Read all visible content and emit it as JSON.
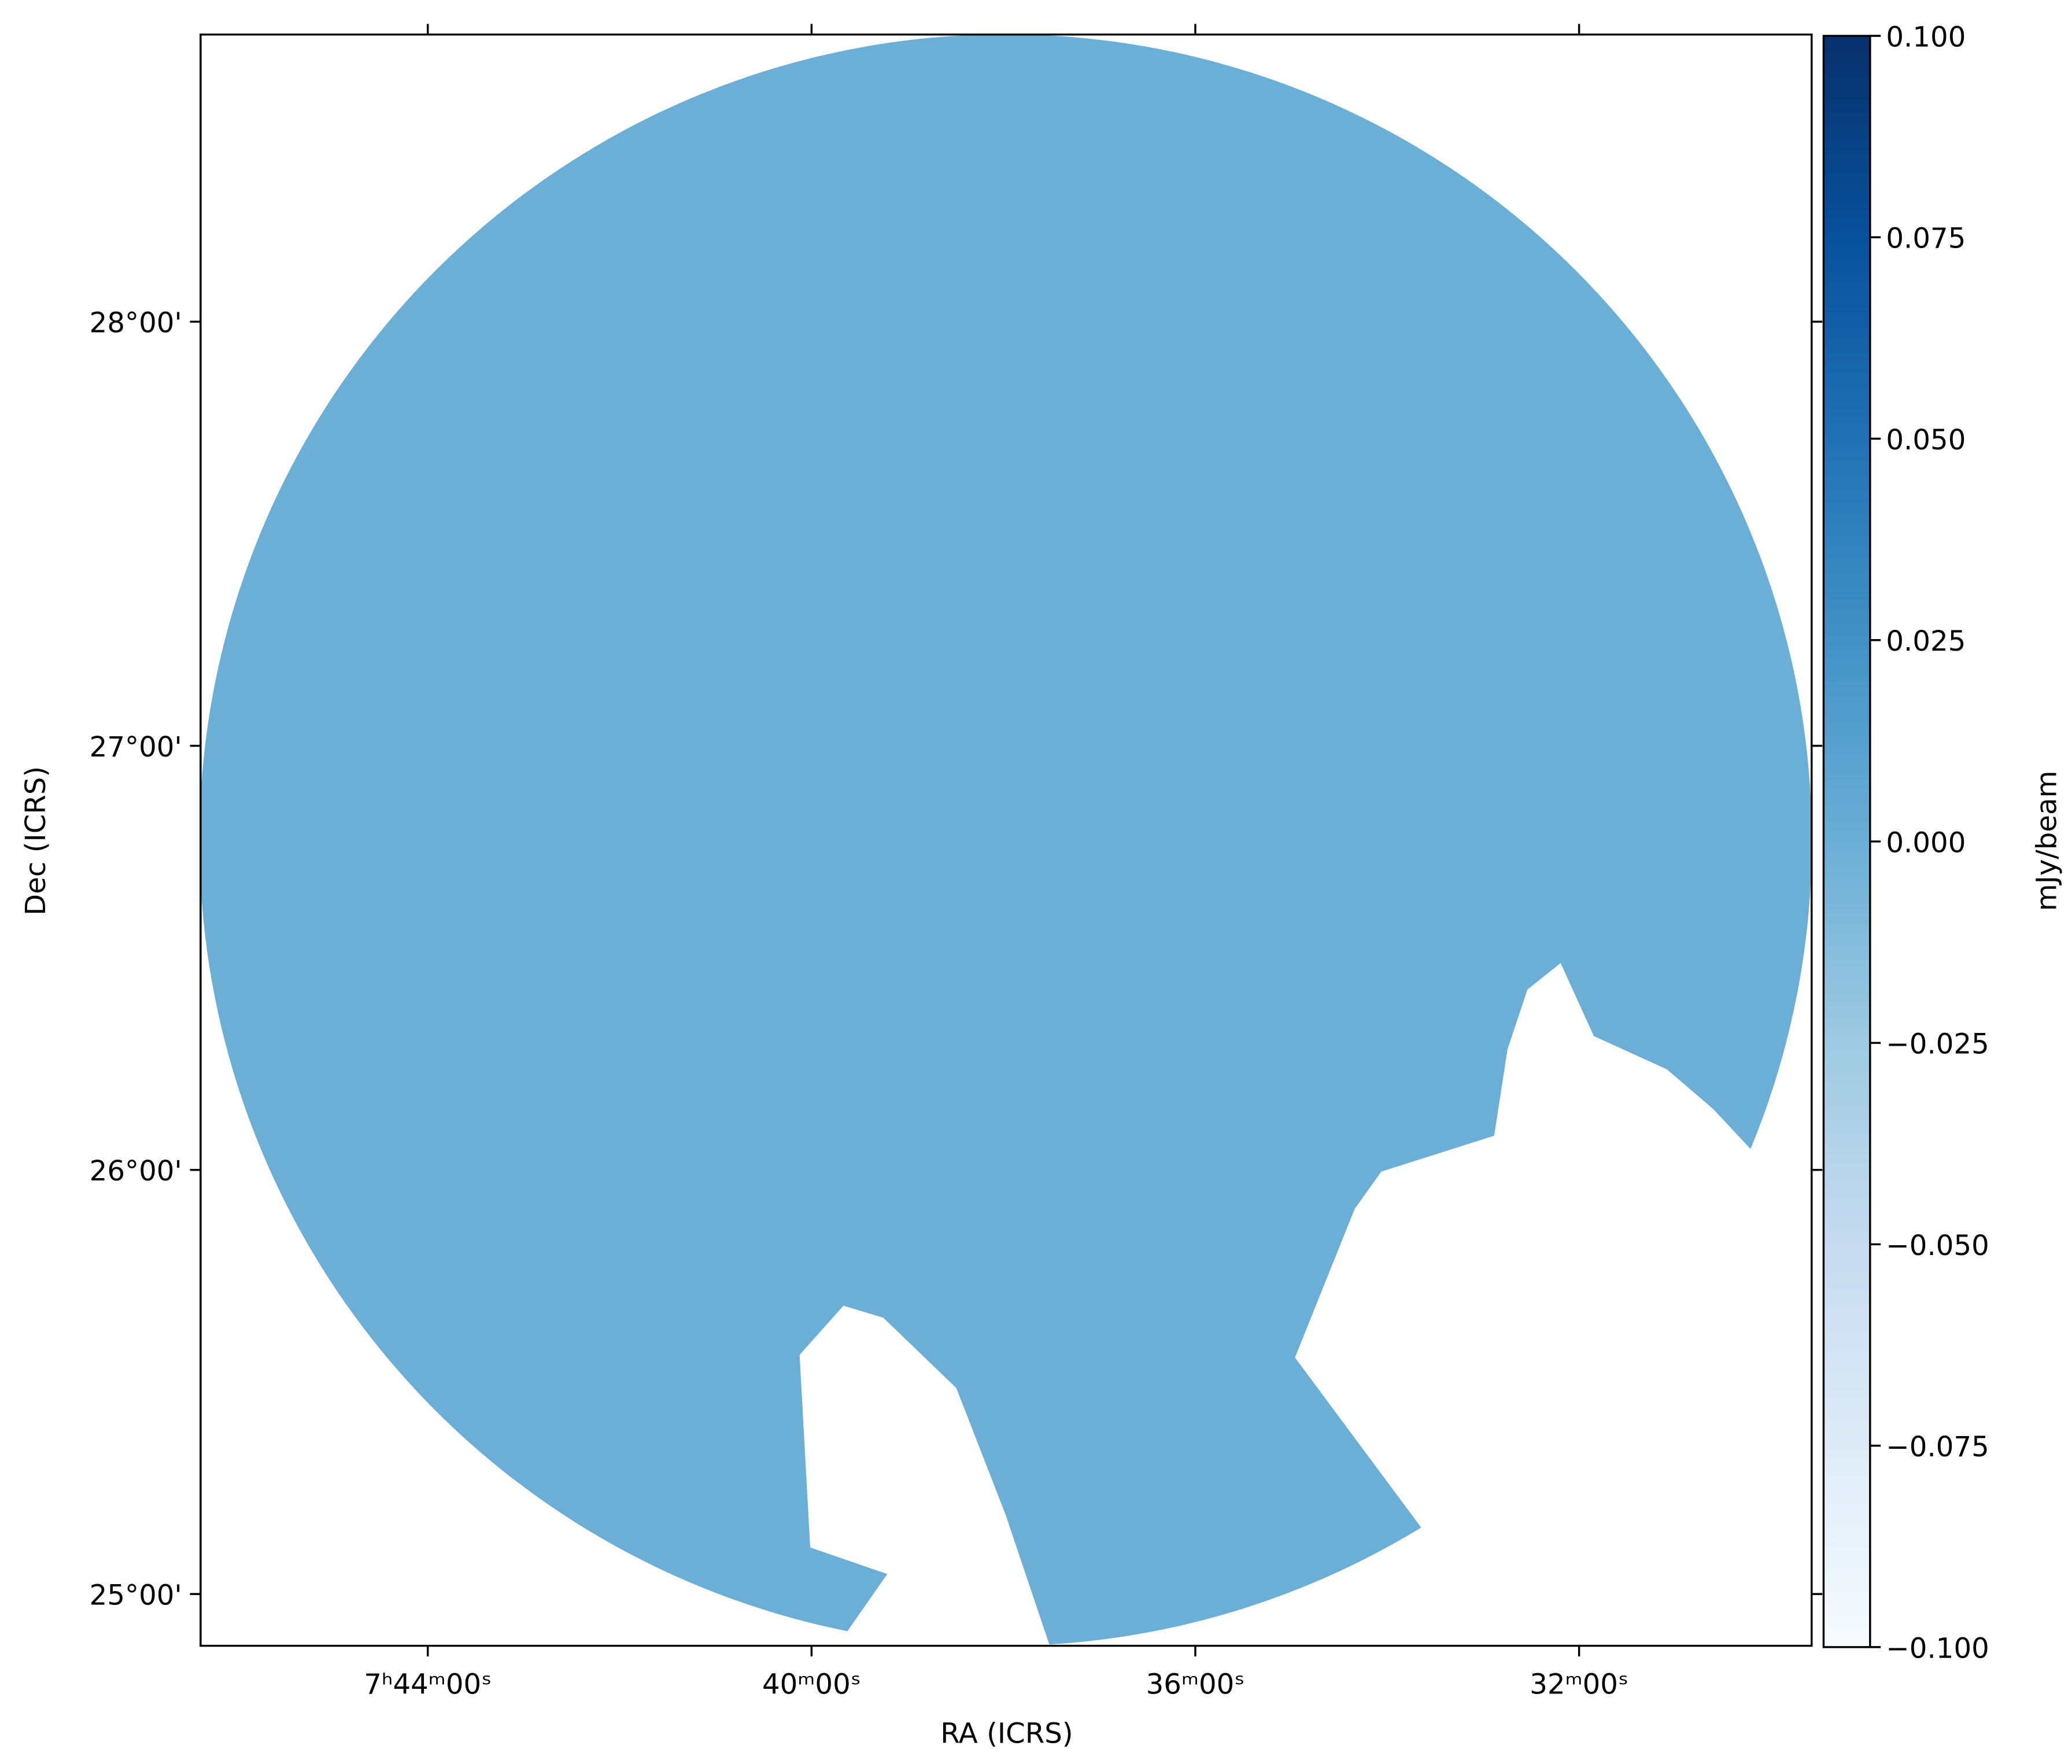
{
  "chart_data": {
    "type": "image",
    "xlabel": "RA (ICRS)",
    "ylabel": "Dec (ICRS)",
    "colorbar_label": "mJy/beam",
    "image_color": "#6baed6",
    "xlim": [
      116.592,
      112.394
    ],
    "xticks": [
      {
        "value": 116,
        "label": "7ʰ44ᵐ00ˢ"
      },
      {
        "value": 115,
        "label": "40ᵐ00ˢ"
      },
      {
        "value": 114,
        "label": "36ᵐ00ˢ"
      },
      {
        "value": 113,
        "label": "32ᵐ00ˢ"
      }
    ],
    "ylim": [
      24.878,
      28.677
    ],
    "yticks": [
      {
        "value": 25,
        "label": "25°00'"
      },
      {
        "value": 26,
        "label": "26°00'"
      },
      {
        "value": 27,
        "label": "27°00'"
      },
      {
        "value": 28,
        "label": "28°00'"
      }
    ],
    "clim": [
      -0.1,
      0.1
    ],
    "cticks": [
      {
        "value": -0.1,
        "label": "−0.100"
      },
      {
        "value": -0.075,
        "label": "−0.075"
      },
      {
        "value": -0.05,
        "label": "−0.050"
      },
      {
        "value": -0.025,
        "label": "−0.025"
      },
      {
        "value": 0,
        "label": "0.000"
      },
      {
        "value": 0.025,
        "label": "0.025"
      },
      {
        "value": 0.05,
        "label": "0.050"
      },
      {
        "value": 0.075,
        "label": "0.075"
      },
      {
        "value": 0.1,
        "label": "0.100"
      }
    ],
    "colormap": [
      "#f7fbff",
      "#deebf7",
      "#c6dbef",
      "#9ecae1",
      "#6baed6",
      "#4292c6",
      "#2171b5",
      "#08519c",
      "#08306b"
    ]
  }
}
